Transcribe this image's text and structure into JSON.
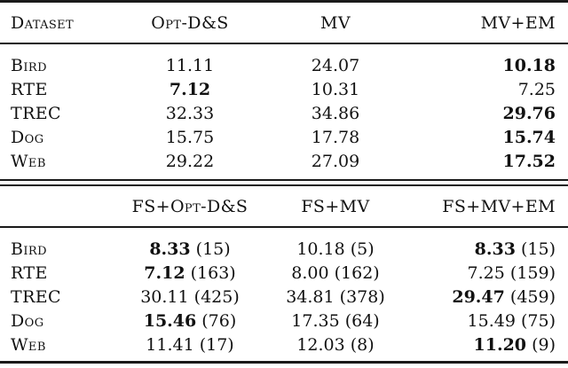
{
  "colors": {
    "background": "#ffffff",
    "text": "#111111",
    "rule": "#1a1a1a"
  },
  "table": {
    "section1": {
      "columns": [
        "Dataset",
        "Opt-D&S",
        "MV",
        "MV+EM"
      ],
      "rows": [
        {
          "dataset": "Bird",
          "cells": [
            {
              "value": "11.11",
              "bold": false
            },
            {
              "value": "24.07",
              "bold": false
            },
            {
              "value": "10.18",
              "bold": true
            }
          ]
        },
        {
          "dataset": "RTE",
          "cells": [
            {
              "value": "7.12",
              "bold": true
            },
            {
              "value": "10.31",
              "bold": false
            },
            {
              "value": "7.25",
              "bold": false
            }
          ]
        },
        {
          "dataset": "TREC",
          "cells": [
            {
              "value": "32.33",
              "bold": false
            },
            {
              "value": "34.86",
              "bold": false
            },
            {
              "value": "29.76",
              "bold": true
            }
          ]
        },
        {
          "dataset": "Dog",
          "cells": [
            {
              "value": "15.75",
              "bold": false
            },
            {
              "value": "17.78",
              "bold": false
            },
            {
              "value": "15.74",
              "bold": true
            }
          ]
        },
        {
          "dataset": "Web",
          "cells": [
            {
              "value": "29.22",
              "bold": false
            },
            {
              "value": "27.09",
              "bold": false
            },
            {
              "value": "17.52",
              "bold": true
            }
          ]
        }
      ]
    },
    "section2": {
      "columns": [
        "",
        "FS+Opt-D&S",
        "FS+MV",
        "FS+MV+EM"
      ],
      "rows": [
        {
          "dataset": "Bird",
          "cells": [
            {
              "value": "8.33",
              "paren": "(15)",
              "bold": true
            },
            {
              "value": "10.18",
              "paren": "(5)",
              "bold": false
            },
            {
              "value": "8.33",
              "paren": "(15)",
              "bold": true
            }
          ]
        },
        {
          "dataset": "RTE",
          "cells": [
            {
              "value": "7.12",
              "paren": "(163)",
              "bold": true
            },
            {
              "value": "8.00",
              "paren": "(162)",
              "bold": false
            },
            {
              "value": "7.25",
              "paren": "(159)",
              "bold": false
            }
          ]
        },
        {
          "dataset": "TREC",
          "cells": [
            {
              "value": "30.11",
              "paren": "(425)",
              "bold": false
            },
            {
              "value": "34.81",
              "paren": "(378)",
              "bold": false
            },
            {
              "value": "29.47",
              "paren": "(459)",
              "bold": true
            }
          ]
        },
        {
          "dataset": "Dog",
          "cells": [
            {
              "value": "15.46",
              "paren": "(76)",
              "bold": true
            },
            {
              "value": "17.35",
              "paren": "(64)",
              "bold": false
            },
            {
              "value": "15.49",
              "paren": "(75)",
              "bold": false
            }
          ]
        },
        {
          "dataset": "Web",
          "cells": [
            {
              "value": "11.41",
              "paren": "(17)",
              "bold": false
            },
            {
              "value": "12.03",
              "paren": "(8)",
              "bold": false
            },
            {
              "value": "11.20",
              "paren": "(9)",
              "bold": true
            }
          ]
        }
      ]
    }
  }
}
